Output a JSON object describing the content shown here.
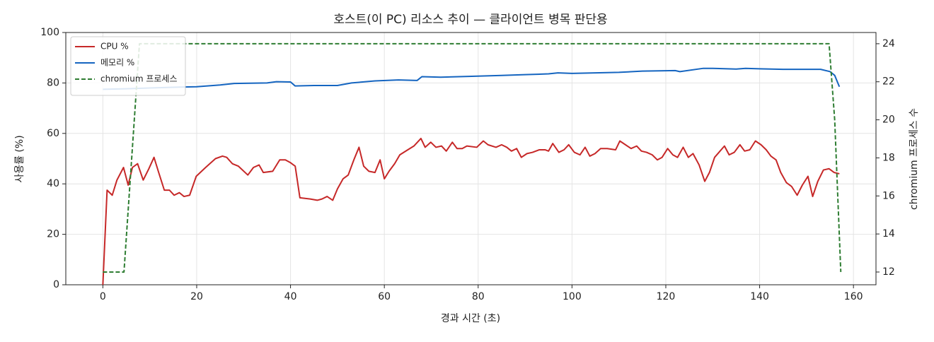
{
  "chart_data": {
    "type": "line",
    "title": "호스트(이 PC) 리소스 추이 — 클라이언트 병목 판단용",
    "x_label": "경과 시간 (초)",
    "y_label": "사용률 (%)",
    "y2_label": "chromium 프로세스 수",
    "xlim": [
      -7.9,
      164.8
    ],
    "xticks": [
      0,
      20,
      40,
      60,
      80,
      100,
      120,
      140,
      160
    ],
    "ylim": [
      0,
      100
    ],
    "yticks": [
      0,
      20,
      40,
      60,
      80,
      100
    ],
    "y2lim": [
      11.33,
      24.59
    ],
    "y2ticks": [
      12,
      14,
      16,
      18,
      20,
      22,
      24
    ],
    "grid": true,
    "legend": "upper left",
    "series": [
      {
        "name": "CPU %",
        "color": "#c62828",
        "dash": false,
        "x": [
          0,
          0.9,
          2,
          3,
          4.4,
          5.4,
          6.3,
          7.4,
          8.6,
          9.8,
          10.9,
          11.9,
          13.1,
          14.2,
          15.2,
          16.3,
          17.3,
          18.5,
          19.9,
          21.9,
          24,
          25.5,
          26.4,
          27.6,
          28.9,
          30.9,
          32.1,
          33.3,
          34.2,
          36.2,
          37.7,
          38.9,
          39.9,
          41,
          42,
          44.2,
          45.7,
          46.7,
          47.8,
          49,
          50,
          51.2,
          52.3,
          53.5,
          54.6,
          55.6,
          56.7,
          58,
          59.1,
          60,
          61,
          62.2,
          63.3,
          65,
          66.3,
          67.8,
          68.7,
          69.9,
          71,
          72.2,
          73.2,
          74.5,
          75.5,
          76.6,
          77.6,
          79.7,
          81.1,
          82.1,
          83.8,
          85,
          86.1,
          87.1,
          88.2,
          89.2,
          90.4,
          91.6,
          93,
          94.3,
          95,
          95.9,
          97.2,
          98.3,
          99.3,
          100.5,
          101.7,
          102.8,
          103.8,
          104.9,
          106.1,
          107.5,
          109.3,
          110.2,
          111.4,
          112.6,
          113.8,
          114.8,
          115.9,
          117.1,
          118.2,
          119.2,
          120.4,
          121.5,
          122.5,
          123.7,
          124.8,
          125.8,
          127.1,
          128.3,
          129.3,
          130.4,
          132.5,
          133.5,
          134.6,
          135.8,
          136.8,
          137.9,
          139.1,
          140.3,
          141.4,
          142.4,
          143.5,
          144.5,
          145.7,
          146.8,
          148,
          149.1,
          150.3,
          151.3,
          152.4,
          153.6,
          154.8,
          155.9,
          157
        ],
        "values": [
          0,
          37.5,
          35.5,
          41.5,
          46.5,
          39.5,
          46.5,
          48,
          41.5,
          46,
          50.5,
          44.5,
          37.5,
          37.5,
          35.5,
          36.5,
          35,
          35.5,
          43,
          46.5,
          50,
          51,
          50.5,
          48,
          47,
          43.5,
          46.5,
          47.5,
          44.5,
          45,
          49.5,
          49.5,
          48.5,
          47,
          34.5,
          34,
          33.5,
          34,
          35,
          33.5,
          38,
          42,
          43.5,
          49.5,
          54.5,
          47,
          45,
          44.5,
          49.5,
          42,
          45,
          48,
          51.5,
          53.5,
          55,
          58,
          54.5,
          56.5,
          54.5,
          55,
          53,
          56.5,
          54,
          54,
          55,
          54.5,
          57,
          55.5,
          54.5,
          55.5,
          54.5,
          53,
          54,
          50.5,
          52,
          52.5,
          53.5,
          53.5,
          53,
          56,
          52.5,
          53.5,
          55.5,
          52.5,
          51.5,
          54.5,
          51,
          52,
          54,
          54,
          53.5,
          57,
          55.5,
          54,
          55,
          53,
          52.5,
          51.5,
          49.5,
          50.5,
          54,
          51.5,
          50.5,
          54.5,
          50.5,
          52,
          47.5,
          41,
          44.5,
          50.5,
          55,
          51.5,
          52.5,
          55.5,
          53,
          53.5,
          57,
          55.5,
          53.5,
          51,
          49.5,
          44.5,
          40.5,
          39,
          35.5,
          39.5,
          43,
          35,
          41,
          45.5,
          46,
          44.5,
          44
        ]
      },
      {
        "name": "메모리 %",
        "color": "#1565c0",
        "dash": false,
        "x": [
          0,
          5,
          10,
          15,
          20,
          25,
          28,
          35,
          37,
          40,
          41,
          45,
          50,
          53,
          58,
          63,
          67,
          68,
          72,
          78,
          85,
          90,
          95,
          97,
          100,
          110,
          115,
          122,
          123,
          128,
          130,
          135,
          137,
          140,
          145,
          153,
          155,
          156,
          157
        ],
        "values": [
          77.5,
          77.7,
          78,
          78.3,
          78.5,
          79.2,
          79.8,
          80,
          80.5,
          80.4,
          78.8,
          79,
          79,
          80,
          80.8,
          81.2,
          81,
          82.5,
          82.3,
          82.6,
          83,
          83.3,
          83.6,
          84,
          83.8,
          84.2,
          84.7,
          84.9,
          84.5,
          85.8,
          85.8,
          85.5,
          85.8,
          85.6,
          85.4,
          85.4,
          84.5,
          83,
          78.5
        ]
      },
      {
        "name": "chromium 프로세스",
        "color": "#2e7d32",
        "dash": true,
        "axis": "y2",
        "x": [
          0,
          4.5,
          7.8,
          154.8,
          156,
          157.3
        ],
        "values": [
          12,
          12,
          24,
          24,
          20,
          12
        ]
      }
    ]
  }
}
